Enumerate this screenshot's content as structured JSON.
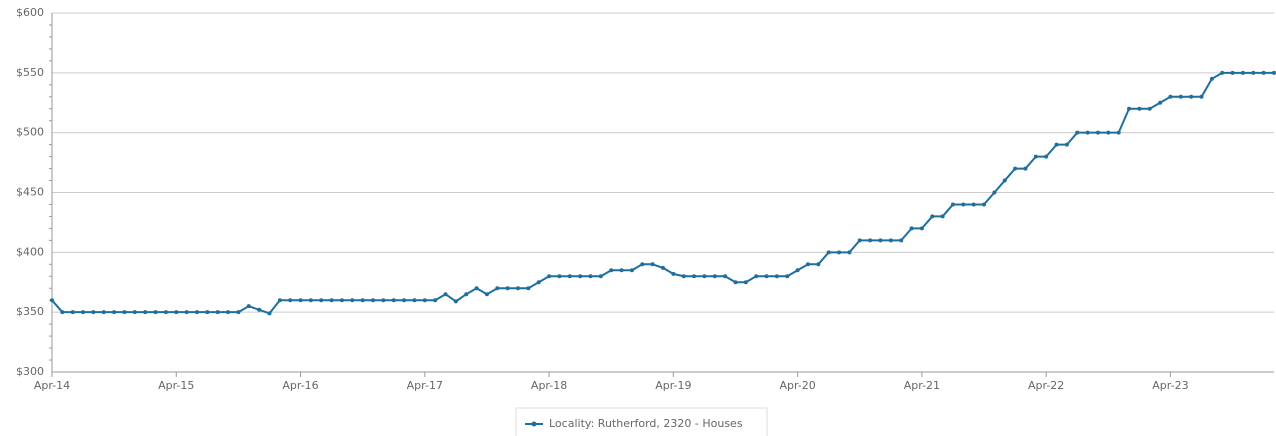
{
  "chart_data": {
    "type": "line",
    "categories": [
      "Apr-14",
      null,
      null,
      null,
      null,
      null,
      null,
      null,
      null,
      null,
      null,
      null,
      "Apr-15",
      null,
      null,
      null,
      null,
      null,
      null,
      null,
      null,
      null,
      null,
      null,
      "Apr-16",
      null,
      null,
      null,
      null,
      null,
      null,
      null,
      null,
      null,
      null,
      null,
      "Apr-17",
      null,
      null,
      null,
      null,
      null,
      null,
      null,
      null,
      null,
      null,
      null,
      "Apr-18",
      null,
      null,
      null,
      null,
      null,
      null,
      null,
      null,
      null,
      null,
      null,
      "Apr-19",
      null,
      null,
      null,
      null,
      null,
      null,
      null,
      null,
      null,
      null,
      null,
      "Apr-20",
      null,
      null,
      null,
      null,
      null,
      null,
      null,
      null,
      null,
      null,
      null,
      "Apr-21",
      null,
      null,
      null,
      null,
      null,
      null,
      null,
      null,
      null,
      null,
      null,
      "Apr-22",
      null,
      null,
      null,
      null,
      null,
      null,
      null,
      null,
      null,
      null,
      null,
      "Apr-23",
      null,
      null,
      null,
      null,
      null,
      null,
      null,
      null,
      null,
      null
    ],
    "series": [
      {
        "name": "Locality: Rutherford, 2320 - Houses",
        "color": "#1f6f9e",
        "values": [
          360,
          350,
          350,
          350,
          350,
          350,
          350,
          350,
          350,
          350,
          350,
          350,
          350,
          350,
          350,
          350,
          350,
          350,
          350,
          355,
          352,
          349,
          360,
          360,
          360,
          360,
          360,
          360,
          360,
          360,
          360,
          360,
          360,
          360,
          360,
          360,
          360,
          360,
          365,
          359,
          365,
          370,
          365,
          370,
          370,
          370,
          370,
          375,
          380,
          380,
          380,
          380,
          380,
          380,
          385,
          385,
          385,
          390,
          390,
          387,
          382,
          380,
          380,
          380,
          380,
          380,
          375,
          375,
          380,
          380,
          380,
          380,
          385,
          390,
          390,
          400,
          400,
          400,
          410,
          410,
          410,
          410,
          410,
          420,
          420,
          430,
          430,
          440,
          440,
          440,
          440,
          450,
          460,
          470,
          470,
          480,
          480,
          490,
          490,
          500,
          500,
          500,
          500,
          500,
          520,
          520,
          520,
          525,
          530,
          530,
          530,
          530,
          545,
          550,
          550,
          550,
          550,
          550,
          550
        ]
      }
    ],
    "ylim": [
      300,
      600
    ],
    "yticks": [
      {
        "value": 300,
        "label": "$300"
      },
      {
        "value": 350,
        "label": "$350"
      },
      {
        "value": 400,
        "label": "$400"
      },
      {
        "value": 450,
        "label": "$450"
      },
      {
        "value": 500,
        "label": "$500"
      },
      {
        "value": 550,
        "label": "$550"
      },
      {
        "value": 600,
        "label": "$600"
      }
    ],
    "grid": true,
    "legend": "bottom"
  }
}
